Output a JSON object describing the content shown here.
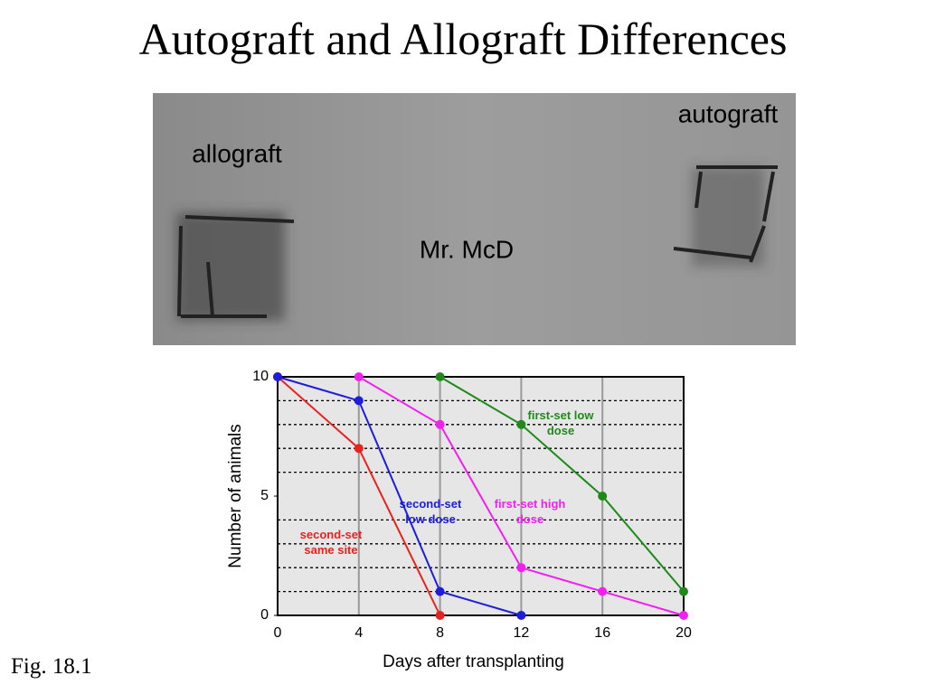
{
  "title": "Autograft and Allograft Differences",
  "photo": {
    "labels": [
      "allograft",
      "autograft",
      "Mr. McD"
    ]
  },
  "caption": "Fig. 18.1",
  "chart_data": {
    "type": "line",
    "x_label": "Days after transplanting",
    "y_label": "Number of animals",
    "x": [
      0,
      4,
      8,
      12,
      16,
      20
    ],
    "xlim": [
      0,
      20
    ],
    "xticks": [
      0,
      4,
      8,
      12,
      16,
      20
    ],
    "ylim": [
      0,
      10
    ],
    "yticks": [
      0,
      5,
      10
    ],
    "yminorticks": [
      1,
      2,
      3,
      4,
      6,
      7,
      8,
      9
    ],
    "grid": true,
    "series": [
      {
        "name": "second-set same site",
        "color": "#e8231f",
        "values": [
          10,
          7,
          0,
          null,
          null,
          null
        ]
      },
      {
        "name": "second-set low dose",
        "color": "#1d1ddb",
        "values": [
          10,
          9,
          1,
          0,
          null,
          null
        ]
      },
      {
        "name": "first-set high dose",
        "color": "#f020f0",
        "values": [
          null,
          10,
          8,
          2,
          1,
          0
        ]
      },
      {
        "name": "first-set low dose",
        "color": "#1f8a1a",
        "values": [
          null,
          null,
          10,
          8,
          5,
          1
        ]
      }
    ]
  }
}
